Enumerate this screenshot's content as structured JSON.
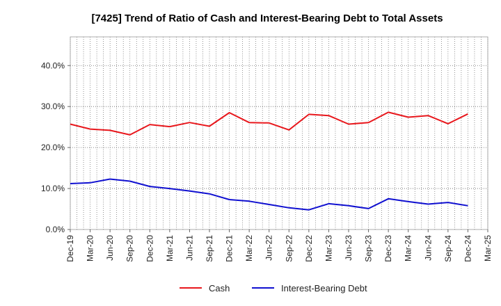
{
  "chart_data": {
    "type": "line",
    "title": "[7425]  Trend of Ratio of Cash and Interest-Bearing Debt to Total Assets",
    "xlabel": "",
    "ylabel": "",
    "categories": [
      "Dec-19",
      "Mar-20",
      "Jun-20",
      "Sep-20",
      "Dec-20",
      "Mar-21",
      "Jun-21",
      "Sep-21",
      "Dec-21",
      "Mar-22",
      "Jun-22",
      "Sep-22",
      "Dec-22",
      "Mar-23",
      "Jun-23",
      "Sep-23",
      "Dec-23",
      "Mar-24",
      "Jun-24",
      "Sep-24",
      "Dec-24",
      "Mar-25"
    ],
    "yticks": [
      "0.0%",
      "10.0%",
      "20.0%",
      "30.0%",
      "40.0%"
    ],
    "ylim": [
      0,
      47
    ],
    "grid": true,
    "legend_position": "bottom",
    "series": [
      {
        "name": "Cash",
        "color": "#e8171c",
        "values": [
          25.7,
          24.5,
          24.2,
          23.1,
          25.6,
          25.1,
          26.1,
          25.2,
          28.5,
          26.1,
          26.0,
          24.3,
          28.1,
          27.8,
          25.7,
          26.1,
          28.6,
          27.4,
          27.8,
          25.8,
          28.2,
          null
        ]
      },
      {
        "name": "Interest-Bearing Debt",
        "color": "#1010d0",
        "values": [
          11.2,
          11.4,
          12.3,
          11.8,
          10.5,
          10.0,
          9.4,
          8.7,
          7.3,
          6.9,
          6.1,
          5.3,
          4.8,
          6.3,
          5.8,
          5.1,
          7.5,
          6.8,
          6.2,
          6.6,
          5.8,
          null
        ]
      }
    ]
  }
}
